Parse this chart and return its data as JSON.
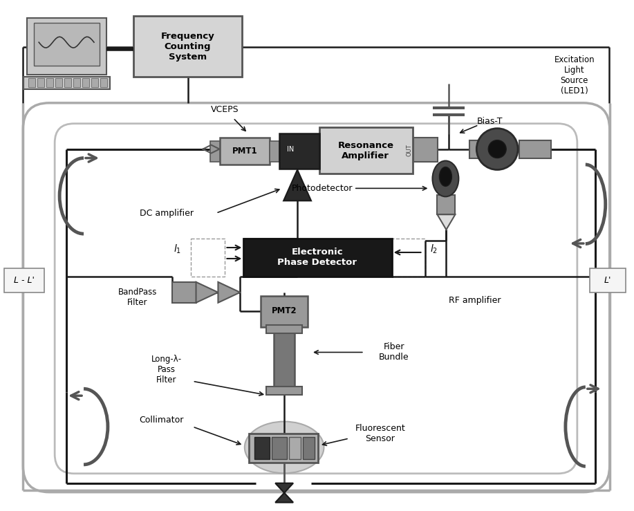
{
  "bg": "#ffffff",
  "gL": "#c8c8c8",
  "gM": "#999999",
  "gD": "#555555",
  "BK": "#1a1a1a",
  "labels": {
    "freq_sys": "Frequency\nCounting\nSystem",
    "vceps": "VCEPS",
    "pmt1": "PMT1",
    "pmt2": "PMT2",
    "res_amp": "Resonance\nAmplifier",
    "epd": "Electronic\nPhase Detector",
    "bias_t": "Bias-T",
    "excitation": "Excitation\nLight\nSource\n(LED1)",
    "photodet": "Photodetector",
    "dc_amp": "DC amplifier",
    "bpf": "BandPass\nFilter",
    "rf_amp": "RF amplifier",
    "long_lam": "Long-λ-\nPass\nFilter",
    "collimator": "Collimator",
    "fiber": "Fiber\nBundle",
    "fluor": "Fluorescent\nSensor",
    "l_lp": "L - L'",
    "lp": "L'",
    "in_label": "IN",
    "out_label": "OUT"
  }
}
